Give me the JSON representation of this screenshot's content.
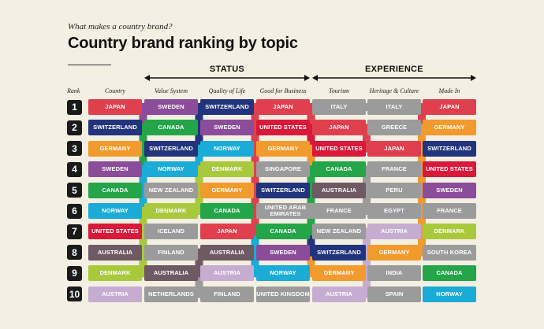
{
  "header": {
    "subtitle": "What makes a country brand?",
    "title": "Country brand ranking by topic"
  },
  "groups": [
    {
      "label": "STATUS",
      "columns": [
        1,
        2,
        3
      ]
    },
    {
      "label": "EXPERIENCE",
      "columns": [
        4,
        5,
        6
      ]
    }
  ],
  "rank_label": "Rank",
  "colors": {
    "JAPAN": "#e0404e",
    "SWITZERLAND": "#22347c",
    "GERMANY": "#f19a2d",
    "SWEDEN": "#8b4c9a",
    "CANADA": "#24a54a",
    "NORWAY": "#1aabd6",
    "UNITED STATES": "#d8193a",
    "AUSTRALIA": "#6e5a63",
    "DENMARK": "#a9c93c",
    "AUSTRIA": "#c6acd1",
    "ITALY": "#9b9b9b",
    "NEW ZEALAND": "#9b9b9b",
    "ICELAND": "#9b9b9b",
    "FINLAND": "#9b9b9b",
    "NETHERLANDS": "#9b9b9b",
    "SINGAPORE": "#9b9b9b",
    "UNITED ARAB EMIRATES": "#9b9b9b",
    "UNITED KINGDOM": "#9b9b9b",
    "GREECE": "#9b9b9b",
    "FRANCE": "#9b9b9b",
    "PERU": "#9b9b9b",
    "EGYPT": "#9b9b9b",
    "INDIA": "#9b9b9b",
    "SPAIN": "#9b9b9b",
    "SOUTH KOREA": "#9b9b9b"
  },
  "chart_data": {
    "type": "table",
    "ranks": [
      "1",
      "2",
      "3",
      "4",
      "5",
      "6",
      "7",
      "8",
      "9",
      "10"
    ],
    "columns": [
      {
        "name": "Country",
        "values": [
          "JAPAN",
          "SWITZERLAND",
          "GERMANY",
          "SWEDEN",
          "CANADA",
          "NORWAY",
          "UNITED STATES",
          "AUSTRALIA",
          "DENMARK",
          "AUSTRIA"
        ]
      },
      {
        "name": "Value System",
        "values": [
          "SWEDEN",
          "CANADA",
          "SWITZERLAND",
          "NORWAY",
          "NEW ZEALAND",
          "DENMARK",
          "ICELAND",
          "FINLAND",
          "AUSTRALIA",
          "NETHERLANDS"
        ]
      },
      {
        "name": "Quality of Life",
        "values": [
          "SWITZERLAND",
          "SWEDEN",
          "NORWAY",
          "DENMARK",
          "GERMANY",
          "CANADA",
          "JAPAN",
          "AUSTRALIA",
          "AUSTRIA",
          "FINLAND"
        ]
      },
      {
        "name": "Good for Business",
        "values": [
          "JAPAN",
          "UNITED STATES",
          "GERMANY",
          "SINGAPORE",
          "SWITZERLAND",
          "UNITED ARAB EMIRATES",
          "CANADA",
          "SWEDEN",
          "NORWAY",
          "UNITED KINGDOM"
        ]
      },
      {
        "name": "Tourism",
        "values": [
          "ITALY",
          "JAPAN",
          "UNITED STATES",
          "CANADA",
          "AUSTRALIA",
          "FRANCE",
          "NEW ZEALAND",
          "SWITZERLAND",
          "GERMANY",
          "AUSTRIA"
        ]
      },
      {
        "name": "Heritage & Culture",
        "values": [
          "ITALY",
          "GREECE",
          "JAPAN",
          "FRANCE",
          "PERU",
          "EGYPT",
          "AUSTRIA",
          "GERMANY",
          "INDIA",
          "SPAIN"
        ]
      },
      {
        "name": "Made In",
        "values": [
          "JAPAN",
          "GERMANY",
          "SWITZERLAND",
          "UNITED STATES",
          "SWEDEN",
          "FRANCE",
          "DENMARK",
          "SOUTH KOREA",
          "CANADA",
          "NORWAY"
        ]
      }
    ]
  }
}
